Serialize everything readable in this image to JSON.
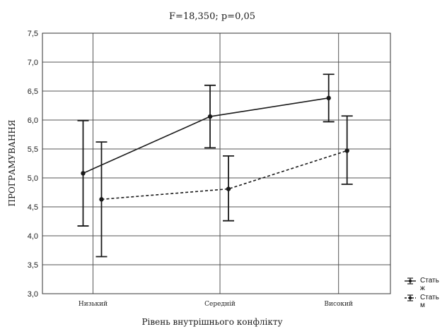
{
  "chart_data": {
    "type": "line",
    "title": "F=18,350; p=0,05",
    "xlabel": "Рівень внутрішнього конфлікту",
    "ylabel": "ПРОГРАМУВАННЯ",
    "categories": [
      "Низький",
      "Середній",
      "Високий"
    ],
    "ylim": [
      3.0,
      7.5
    ],
    "yticks": [
      "3,0",
      "3,5",
      "4,0",
      "4,5",
      "5,0",
      "5,5",
      "6,0",
      "6,5",
      "7,0",
      "7,5"
    ],
    "grid": true,
    "legend_position": "bottom-right",
    "series": [
      {
        "name": "Стать ж",
        "line_style": "solid",
        "color": "#1a1a1a",
        "values": [
          5.08,
          6.06,
          6.38
        ],
        "error_low": [
          4.17,
          5.52,
          5.97
        ],
        "error_high": [
          5.99,
          6.6,
          6.79
        ]
      },
      {
        "name": "Стать м",
        "line_style": "dashed",
        "color": "#1a1a1a",
        "values": [
          4.63,
          4.81,
          5.47
        ],
        "error_low": [
          3.64,
          4.26,
          4.89
        ],
        "error_high": [
          5.62,
          5.38,
          6.07
        ]
      }
    ]
  }
}
